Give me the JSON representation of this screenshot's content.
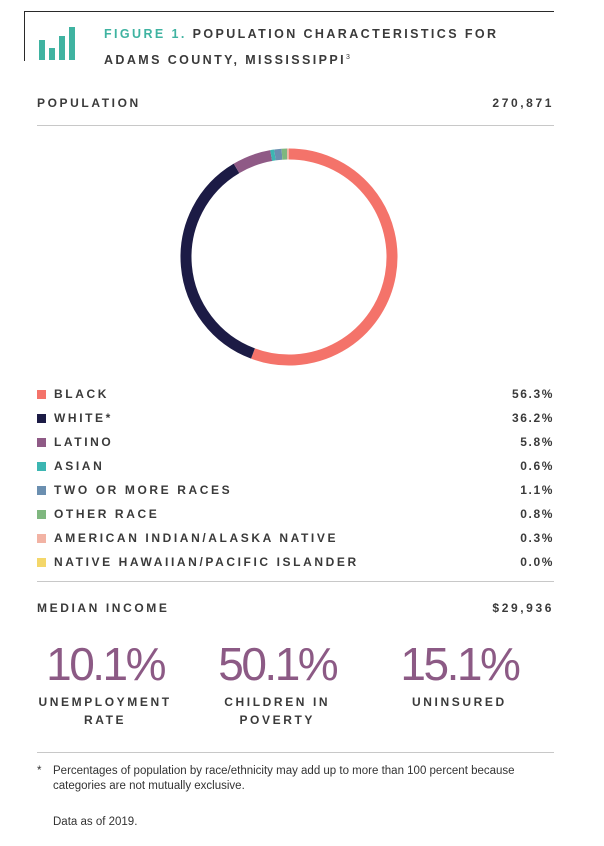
{
  "figure": {
    "number": "FIGURE 1.",
    "title": "POPULATION CHARACTERISTICS FOR ADAMS COUNTY, MISSISSIPPI",
    "footnote_ref": "3"
  },
  "population": {
    "label": "POPULATION",
    "value": "270,871"
  },
  "chart_data": {
    "type": "pie",
    "donut": true,
    "categories": [
      "BLACK",
      "WHITE*",
      "LATINO",
      "ASIAN",
      "TWO OR MORE RACES",
      "OTHER RACE",
      "AMERICAN INDIAN/ALASKA NATIVE",
      "NATIVE HAWAIIAN/PACIFIC ISLANDER"
    ],
    "values": [
      56.3,
      36.2,
      5.8,
      0.6,
      1.1,
      0.8,
      0.3,
      0.0
    ],
    "value_labels": [
      "56.3%",
      "36.2%",
      "5.8%",
      "0.6%",
      "1.1%",
      "0.8%",
      "0.3%",
      "0.0%"
    ],
    "colors": [
      "#f4736a",
      "#1c1b45",
      "#8f5a86",
      "#3cb6b2",
      "#6b8fb0",
      "#7fb77f",
      "#f2b3a4",
      "#f4d76a"
    ],
    "legend_position": "below"
  },
  "median_income": {
    "label": "MEDIAN INCOME",
    "value": "$29,936"
  },
  "stats": [
    {
      "value": "10.1%",
      "label_line1": "UNEMPLOYMENT",
      "label_line2": "RATE"
    },
    {
      "value": "50.1%",
      "label_line1": "CHILDREN IN",
      "label_line2": "POVERTY"
    },
    {
      "value": "15.1%",
      "label_line1": "UNINSURED",
      "label_line2": ""
    }
  ],
  "notes": {
    "star": "*",
    "text": "Percentages of population by race/ethnicity may add up to more than 100 percent because categories are not mutually exclusive.",
    "as_of": "Data as of 2019."
  },
  "icon": {
    "name": "bar-chart-icon",
    "color": "#3fb3a1"
  }
}
